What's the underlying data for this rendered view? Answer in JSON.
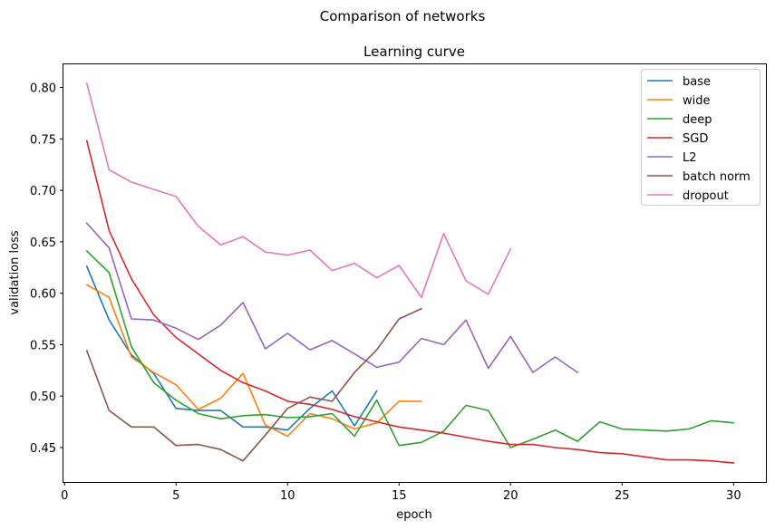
{
  "chart_data": {
    "type": "line",
    "suptitle": "Comparison of networks",
    "title": "Learning curve",
    "xlabel": "epoch",
    "ylabel": "validation loss",
    "xlim": [
      -0.05,
      31.45
    ],
    "ylim": [
      0.4165,
      0.8225
    ],
    "xticks": [
      0,
      5,
      10,
      15,
      20,
      25,
      30
    ],
    "yticks": [
      0.45,
      0.5,
      0.55,
      0.6,
      0.65,
      0.7,
      0.75,
      0.8
    ],
    "legend_position": "top-right",
    "series": [
      {
        "name": "base",
        "color": "#1f77b4",
        "x": [
          1,
          2,
          3,
          4,
          5,
          6,
          7,
          8,
          9,
          10,
          11,
          12,
          13,
          14
        ],
        "y": [
          0.626,
          0.574,
          0.54,
          0.522,
          0.488,
          0.486,
          0.486,
          0.47,
          0.47,
          0.467,
          0.488,
          0.505,
          0.471,
          0.505
        ]
      },
      {
        "name": "wide",
        "color": "#ff7f0e",
        "x": [
          1,
          2,
          3,
          4,
          5,
          6,
          7,
          8,
          9,
          10,
          11,
          12,
          13,
          14,
          15,
          16
        ],
        "y": [
          0.608,
          0.596,
          0.538,
          0.523,
          0.511,
          0.487,
          0.498,
          0.522,
          0.472,
          0.461,
          0.483,
          0.478,
          0.468,
          0.474,
          0.495,
          0.495
        ]
      },
      {
        "name": "deep",
        "color": "#2ca02c",
        "x": [
          1,
          2,
          3,
          4,
          5,
          6,
          7,
          8,
          9,
          10,
          11,
          12,
          13,
          14,
          15,
          16,
          17,
          18,
          19,
          20,
          21,
          22,
          23,
          24,
          25,
          26,
          27,
          28,
          29,
          30
        ],
        "y": [
          0.641,
          0.62,
          0.548,
          0.513,
          0.496,
          0.483,
          0.478,
          0.481,
          0.482,
          0.479,
          0.48,
          0.483,
          0.461,
          0.496,
          0.452,
          0.455,
          0.466,
          0.491,
          0.486,
          0.45,
          0.458,
          0.467,
          0.456,
          0.475,
          0.468,
          0.467,
          0.466,
          0.468,
          0.476,
          0.474
        ]
      },
      {
        "name": "SGD",
        "color": "#d62728",
        "x": [
          1,
          2,
          3,
          4,
          5,
          6,
          7,
          8,
          9,
          10,
          11,
          12,
          13,
          14,
          15,
          16,
          17,
          18,
          19,
          20,
          21,
          22,
          23,
          24,
          25,
          26,
          27,
          28,
          29,
          30
        ],
        "y": [
          0.748,
          0.661,
          0.614,
          0.579,
          0.557,
          0.541,
          0.525,
          0.513,
          0.505,
          0.495,
          0.492,
          0.487,
          0.48,
          0.475,
          0.47,
          0.467,
          0.464,
          0.46,
          0.456,
          0.453,
          0.453,
          0.45,
          0.448,
          0.445,
          0.444,
          0.441,
          0.438,
          0.438,
          0.437,
          0.435
        ]
      },
      {
        "name": "L2",
        "color": "#9467bd",
        "x": [
          1,
          2,
          3,
          4,
          5,
          6,
          7,
          8,
          9,
          10,
          11,
          12,
          13,
          14,
          15,
          16,
          17,
          18,
          19,
          20,
          21,
          22,
          23
        ],
        "y": [
          0.668,
          0.644,
          0.575,
          0.574,
          0.566,
          0.555,
          0.569,
          0.591,
          0.546,
          0.561,
          0.545,
          0.554,
          0.541,
          0.528,
          0.533,
          0.556,
          0.55,
          0.574,
          0.527,
          0.558,
          0.523,
          0.538,
          0.523
        ]
      },
      {
        "name": "batch norm",
        "color": "#8c564b",
        "x": [
          1,
          2,
          3,
          4,
          5,
          6,
          7,
          8,
          9,
          10,
          11,
          12,
          13,
          14,
          15,
          16
        ],
        "y": [
          0.544,
          0.486,
          0.47,
          0.47,
          0.452,
          0.453,
          0.448,
          0.437,
          0.462,
          0.488,
          0.499,
          0.495,
          0.523,
          0.545,
          0.575,
          0.585
        ]
      },
      {
        "name": "dropout",
        "color": "#e377c2",
        "x": [
          1,
          2,
          3,
          4,
          5,
          6,
          7,
          8,
          9,
          10,
          11,
          12,
          13,
          14,
          15,
          16,
          17,
          18,
          19,
          20
        ],
        "y": [
          0.804,
          0.72,
          0.708,
          0.701,
          0.694,
          0.665,
          0.647,
          0.655,
          0.64,
          0.637,
          0.642,
          0.622,
          0.629,
          0.615,
          0.627,
          0.596,
          0.658,
          0.612,
          0.599,
          0.643
        ]
      }
    ]
  }
}
